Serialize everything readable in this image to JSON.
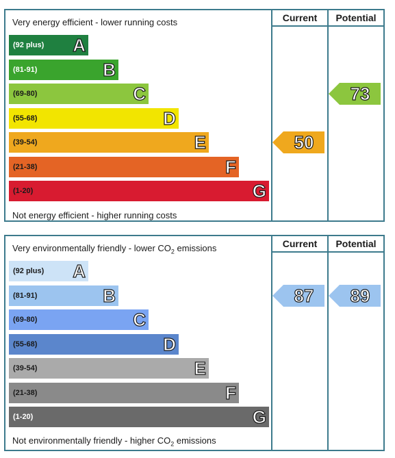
{
  "chart_data": [
    {
      "type": "bar",
      "columns": [
        "Current",
        "Potential"
      ],
      "top_caption": "Very energy efficient - lower running costs",
      "bottom_caption": "Not energy efficient - higher running costs",
      "bands": [
        {
          "range": "(92 plus)",
          "letter": "A",
          "color": "#1f8040",
          "text_color": "#ffffff"
        },
        {
          "range": "(81-91)",
          "letter": "B",
          "color": "#3aa42d",
          "text_color": "#ffffff"
        },
        {
          "range": "(69-80)",
          "letter": "C",
          "color": "#8cc63e",
          "text_color": "#1a1a1a"
        },
        {
          "range": "(55-68)",
          "letter": "D",
          "color": "#f2e500",
          "text_color": "#1a1a1a"
        },
        {
          "range": "(39-54)",
          "letter": "E",
          "color": "#efa81e",
          "text_color": "#1a1a1a"
        },
        {
          "range": "(21-38)",
          "letter": "F",
          "color": "#e46425",
          "text_color": "#1a1a1a"
        },
        {
          "range": "(1-20)",
          "letter": "G",
          "color": "#d81b30",
          "text_color": "#1a1a1a"
        }
      ],
      "current": {
        "value": 50,
        "band": "E",
        "color": "#efa81e"
      },
      "potential": {
        "value": 73,
        "band": "C",
        "color": "#8cc63e"
      }
    },
    {
      "type": "bar",
      "columns": [
        "Current",
        "Potential"
      ],
      "top_caption_pre": "Very environmentally friendly - lower CO",
      "top_caption_sub": "2",
      "top_caption_post": " emissions",
      "bottom_caption_pre": "Not environmentally friendly - higher CO",
      "bottom_caption_sub": "2",
      "bottom_caption_post": " emissions",
      "bands": [
        {
          "range": "(92 plus)",
          "letter": "A",
          "color": "#cde3f7",
          "text_color": "#1a1a1a"
        },
        {
          "range": "(81-91)",
          "letter": "B",
          "color": "#9cc4ef",
          "text_color": "#1a1a1a"
        },
        {
          "range": "(69-80)",
          "letter": "C",
          "color": "#7aa4f2",
          "text_color": "#1a1a1a"
        },
        {
          "range": "(55-68)",
          "letter": "D",
          "color": "#5b86cc",
          "text_color": "#1a1a1a"
        },
        {
          "range": "(39-54)",
          "letter": "E",
          "color": "#aaaaaa",
          "text_color": "#1a1a1a"
        },
        {
          "range": "(21-38)",
          "letter": "F",
          "color": "#8a8a8a",
          "text_color": "#1a1a1a"
        },
        {
          "range": "(1-20)",
          "letter": "G",
          "color": "#6a6a6a",
          "text_color": "#ffffff"
        }
      ],
      "current": {
        "value": 87,
        "band": "B",
        "color": "#9cc4ef"
      },
      "potential": {
        "value": 89,
        "band": "B",
        "color": "#9cc4ef"
      }
    }
  ]
}
